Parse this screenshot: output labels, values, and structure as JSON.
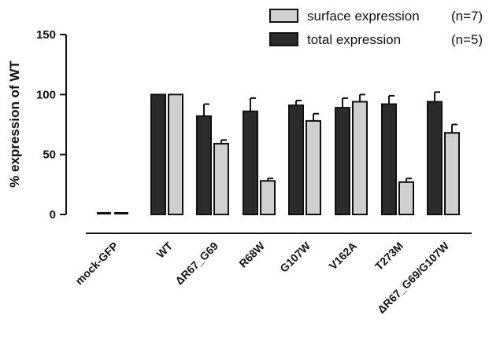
{
  "chart_data": {
    "type": "bar",
    "ylabel": "% expression of WT",
    "xlabel": "",
    "ylim": [
      0,
      150
    ],
    "yticks": [
      0,
      50,
      100,
      150
    ],
    "grid": false,
    "legend_position": "top-right",
    "categories": [
      "mock-GFP",
      "WT",
      "ΔR67_G69",
      "R68W",
      "G107W",
      "V162A",
      "T273M",
      "ΔR67_G69/G107W"
    ],
    "series": [
      {
        "name": "total expression",
        "n_label": "(n=5)",
        "color": "#2b2b2b",
        "values": [
          1,
          100,
          82,
          86,
          91,
          89,
          92,
          94
        ],
        "errors": [
          0,
          0,
          10,
          11,
          4,
          8,
          7,
          8
        ]
      },
      {
        "name": "surface expression",
        "n_label": "(n=7)",
        "color": "#cfcfcf",
        "values": [
          1,
          100,
          59,
          28,
          78,
          94,
          27,
          68
        ],
        "errors": [
          0,
          0,
          3,
          2,
          6,
          6,
          3,
          7
        ]
      }
    ],
    "legend": [
      {
        "label": "surface expression",
        "n": "(n=7)",
        "color": "#cfcfcf"
      },
      {
        "label": "total expression",
        "n": "(n=5)",
        "color": "#2b2b2b"
      }
    ]
  }
}
